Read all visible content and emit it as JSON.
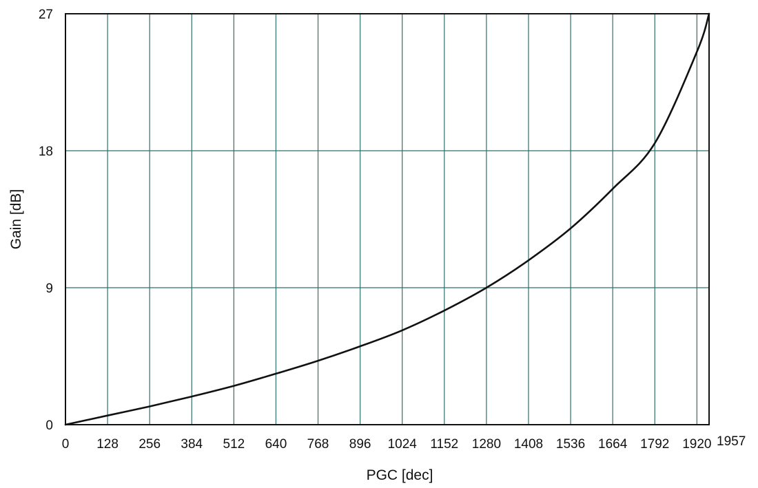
{
  "chart_data": {
    "type": "line",
    "xlabel": "PGC [dec]",
    "ylabel": "Gain [dB]",
    "xlim": [
      0,
      1957
    ],
    "ylim": [
      0,
      27
    ],
    "x_ticks": [
      0,
      128,
      256,
      384,
      512,
      640,
      768,
      896,
      1024,
      1152,
      1280,
      1408,
      1536,
      1664,
      1792,
      1920
    ],
    "x_tick_labels": [
      "0",
      "128",
      "256",
      "384",
      "512",
      "640",
      "768",
      "896",
      "1024",
      "1152",
      "1280",
      "1408",
      "1536",
      "1664",
      "1792",
      "1920"
    ],
    "x_end_label": "1957",
    "y_ticks": [
      0,
      9,
      18,
      27
    ],
    "y_tick_labels": [
      "0",
      "9",
      "18",
      "27"
    ],
    "grid": true,
    "series": [
      {
        "x": [
          0,
          128,
          256,
          384,
          512,
          640,
          768,
          896,
          1024,
          1152,
          1280,
          1408,
          1536,
          1664,
          1792,
          1920,
          1957
        ],
        "y": [
          0,
          0.6,
          1.2,
          1.85,
          2.55,
          3.35,
          4.2,
          5.15,
          6.2,
          7.5,
          9.0,
          10.8,
          12.9,
          15.5,
          18.5,
          24.5,
          27
        ]
      }
    ],
    "colors": {
      "grid": "#2f6e6a",
      "frame": "#111111",
      "curve": "#111111",
      "text": "#111111"
    }
  }
}
